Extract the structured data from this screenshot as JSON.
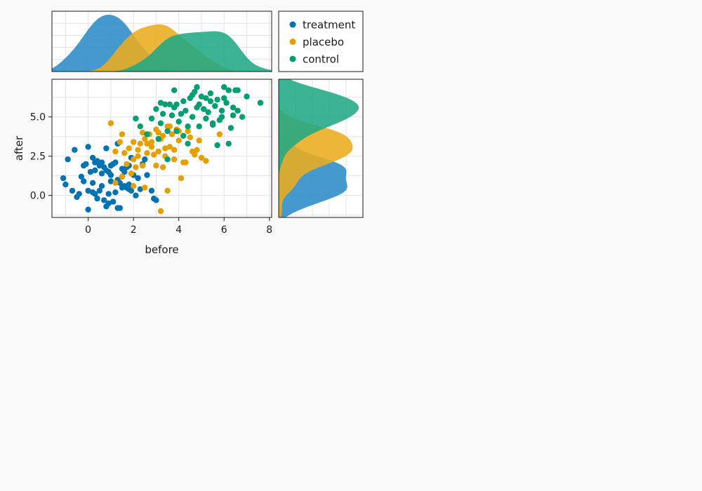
{
  "chart_data": {
    "type": "scatter",
    "xlabel": "before",
    "ylabel": "after",
    "xlim": [
      -1.6,
      8.1
    ],
    "ylim": [
      -1.4,
      7.4
    ],
    "xticks": [
      0,
      2,
      4,
      6,
      8
    ],
    "xtick_labels": [
      "0",
      "2",
      "4",
      "6",
      "8"
    ],
    "yticks": [
      0,
      2.5,
      5
    ],
    "ytick_labels": [
      "0.0",
      "2.5",
      "5.0"
    ],
    "grid": true,
    "legend_position": "top-right panel",
    "marginal_top": {
      "type": "area",
      "description": "density of before per group"
    },
    "marginal_right": {
      "type": "area",
      "description": "density of after per group"
    },
    "series": [
      {
        "name": "treatment",
        "color": "#0072b2",
        "fill": "#2b8bc6",
        "points": [
          [
            0.0,
            3.1
          ],
          [
            0.2,
            2.4
          ],
          [
            0.3,
            2.1
          ],
          [
            0.4,
            2.2
          ],
          [
            0.5,
            1.9
          ],
          [
            0.6,
            2.1
          ],
          [
            0.7,
            1.8
          ],
          [
            0.8,
            1.6
          ],
          [
            0.9,
            1.5
          ],
          [
            1.0,
            1.3
          ],
          [
            1.1,
            2.0
          ],
          [
            1.2,
            2.1
          ],
          [
            1.3,
            1.0
          ],
          [
            1.4,
            0.8
          ],
          [
            1.5,
            1.2
          ],
          [
            1.6,
            1.5
          ],
          [
            1.7,
            1.8
          ],
          [
            1.8,
            1.9
          ],
          [
            1.9,
            2.4
          ],
          [
            2.0,
            1.3
          ],
          [
            2.2,
            1.1
          ],
          [
            2.4,
            2.0
          ],
          [
            2.6,
            1.3
          ],
          [
            2.8,
            0.3
          ],
          [
            2.9,
            -0.2
          ],
          [
            3.0,
            -0.3
          ],
          [
            -1.1,
            1.1
          ],
          [
            -1.0,
            0.7
          ],
          [
            -0.9,
            2.3
          ],
          [
            -0.7,
            0.3
          ],
          [
            -0.6,
            2.9
          ],
          [
            -0.5,
            -0.1
          ],
          [
            -0.4,
            0.1
          ],
          [
            -0.3,
            1.2
          ],
          [
            -0.2,
            1.9
          ],
          [
            -0.1,
            2.0
          ],
          [
            0.0,
            0.3
          ],
          [
            0.0,
            -0.9
          ],
          [
            0.1,
            1.5
          ],
          [
            0.2,
            0.8
          ],
          [
            0.3,
            0.1
          ],
          [
            0.4,
            -0.2
          ],
          [
            0.5,
            0.3
          ],
          [
            0.6,
            0.6
          ],
          [
            0.7,
            -0.3
          ],
          [
            0.8,
            -0.7
          ],
          [
            0.9,
            0.1
          ],
          [
            1.0,
            0.9
          ],
          [
            1.1,
            -0.4
          ],
          [
            1.2,
            0.2
          ],
          [
            1.3,
            -0.8
          ],
          [
            1.4,
            -0.8
          ],
          [
            1.5,
            0.5
          ],
          [
            1.6,
            0.6
          ],
          [
            1.7,
            0.5
          ],
          [
            1.8,
            0.7
          ],
          [
            1.9,
            0.3
          ],
          [
            2.1,
            0.0
          ],
          [
            2.3,
            0.4
          ],
          [
            2.5,
            2.3
          ],
          [
            0.8,
            3.0
          ],
          [
            1.3,
            3.3
          ],
          [
            0.3,
            1.6
          ],
          [
            0.6,
            1.4
          ],
          [
            1.0,
            1.9
          ],
          [
            1.5,
            1.7
          ],
          [
            1.8,
            0.4
          ],
          [
            0.2,
            0.2
          ],
          [
            -0.2,
            0.9
          ],
          [
            0.9,
            -0.5
          ]
        ]
      },
      {
        "name": "placebo",
        "color": "#e69f00",
        "fill": "#eaac1e",
        "points": [
          [
            1.0,
            4.6
          ],
          [
            1.2,
            2.8
          ],
          [
            1.4,
            3.4
          ],
          [
            1.5,
            3.9
          ],
          [
            1.6,
            2.7
          ],
          [
            1.7,
            2.0
          ],
          [
            1.8,
            3.0
          ],
          [
            1.9,
            1.4
          ],
          [
            2.0,
            3.4
          ],
          [
            2.1,
            1.8
          ],
          [
            2.2,
            2.9
          ],
          [
            2.3,
            3.3
          ],
          [
            2.4,
            4.0
          ],
          [
            2.5,
            3.6
          ],
          [
            2.6,
            2.7
          ],
          [
            2.7,
            3.9
          ],
          [
            2.8,
            3.4
          ],
          [
            2.9,
            2.6
          ],
          [
            3.0,
            4.2
          ],
          [
            3.1,
            2.8
          ],
          [
            3.2,
            3.6
          ],
          [
            3.3,
            1.8
          ],
          [
            3.4,
            3.0
          ],
          [
            3.5,
            4.4
          ],
          [
            3.6,
            3.1
          ],
          [
            3.7,
            3.9
          ],
          [
            3.8,
            2.9
          ],
          [
            3.9,
            4.2
          ],
          [
            4.0,
            3.5
          ],
          [
            4.1,
            1.1
          ],
          [
            4.2,
            2.1
          ],
          [
            4.3,
            2.1
          ],
          [
            4.4,
            4.1
          ],
          [
            4.5,
            3.7
          ],
          [
            4.6,
            2.8
          ],
          [
            4.7,
            2.6
          ],
          [
            4.8,
            2.9
          ],
          [
            4.9,
            3.5
          ],
          [
            5.0,
            2.4
          ],
          [
            5.2,
            2.2
          ],
          [
            5.5,
            4.5
          ],
          [
            5.8,
            3.9
          ],
          [
            1.2,
            0.8
          ],
          [
            1.5,
            1.2
          ],
          [
            2.0,
            0.6
          ],
          [
            2.5,
            0.5
          ],
          [
            3.0,
            1.9
          ],
          [
            3.2,
            -1.0
          ],
          [
            3.5,
            0.3
          ],
          [
            2.2,
            2.5
          ],
          [
            2.8,
            3.1
          ],
          [
            3.3,
            3.8
          ],
          [
            3.6,
            4.4
          ],
          [
            2.4,
            1.9
          ],
          [
            2.6,
            3.3
          ],
          [
            3.1,
            4.0
          ],
          [
            3.4,
            2.5
          ],
          [
            2.0,
            2.3
          ],
          [
            4.0,
            4.1
          ],
          [
            3.8,
            2.3
          ]
        ]
      },
      {
        "name": "control",
        "color": "#009e73",
        "fill": "#21a884",
        "points": [
          [
            2.1,
            4.9
          ],
          [
            2.3,
            4.4
          ],
          [
            2.6,
            3.9
          ],
          [
            2.8,
            4.9
          ],
          [
            3.0,
            5.5
          ],
          [
            3.1,
            3.6
          ],
          [
            3.2,
            4.6
          ],
          [
            3.3,
            5.2
          ],
          [
            3.4,
            5.8
          ],
          [
            3.5,
            4.1
          ],
          [
            3.6,
            5.8
          ],
          [
            3.7,
            5.1
          ],
          [
            3.8,
            6.7
          ],
          [
            3.9,
            5.8
          ],
          [
            4.0,
            4.7
          ],
          [
            4.1,
            5.2
          ],
          [
            4.2,
            6.0
          ],
          [
            4.3,
            5.4
          ],
          [
            4.4,
            3.3
          ],
          [
            4.5,
            6.2
          ],
          [
            4.6,
            6.4
          ],
          [
            4.7,
            6.6
          ],
          [
            4.8,
            5.6
          ],
          [
            4.9,
            4.4
          ],
          [
            5.0,
            6.3
          ],
          [
            5.1,
            5.5
          ],
          [
            5.2,
            4.9
          ],
          [
            5.3,
            5.3
          ],
          [
            5.4,
            6.5
          ],
          [
            5.5,
            4.6
          ],
          [
            5.6,
            5.7
          ],
          [
            5.7,
            6.1
          ],
          [
            5.8,
            4.8
          ],
          [
            5.9,
            5.4
          ],
          [
            6.0,
            6.2
          ],
          [
            6.1,
            5.9
          ],
          [
            6.2,
            6.7
          ],
          [
            6.3,
            4.3
          ],
          [
            6.4,
            5.6
          ],
          [
            6.5,
            6.7
          ],
          [
            6.6,
            5.4
          ],
          [
            6.8,
            5.0
          ],
          [
            7.0,
            6.3
          ],
          [
            7.6,
            5.9
          ],
          [
            6.0,
            6.9
          ],
          [
            5.4,
            6.0
          ],
          [
            4.6,
            5.0
          ],
          [
            3.9,
            4.1
          ],
          [
            3.2,
            5.9
          ],
          [
            4.8,
            6.9
          ],
          [
            5.7,
            3.2
          ],
          [
            4.2,
            3.8
          ],
          [
            3.5,
            2.3
          ],
          [
            6.2,
            3.3
          ],
          [
            5.2,
            6.2
          ],
          [
            4.4,
            4.4
          ],
          [
            6.6,
            6.7
          ],
          [
            5.9,
            5.0
          ],
          [
            3.8,
            5.6
          ],
          [
            4.9,
            5.8
          ],
          [
            5.5,
            4.5
          ],
          [
            6.4,
            5.1
          ]
        ]
      }
    ]
  }
}
